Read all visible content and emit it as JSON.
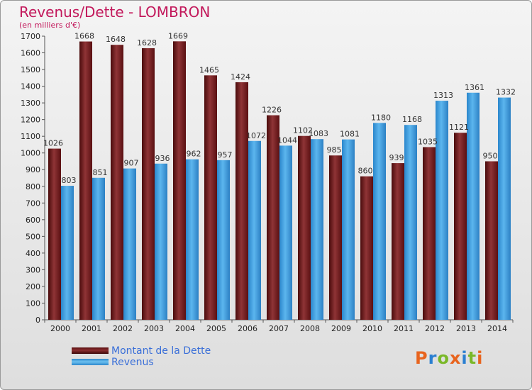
{
  "header": {
    "title": "Revenus/Dette - LOMBRON",
    "subtitle": "(en milliers d'€)"
  },
  "legend": {
    "dette_label": "Montant de la Dette",
    "revenus_label": "Revenus"
  },
  "brand": {
    "letters": [
      "P",
      "r",
      "o",
      "x",
      "i",
      "t",
      "i"
    ],
    "colors": [
      "#e8641e",
      "#2a7fd1",
      "#7ab829",
      "#e8641e",
      "#2a7fd1",
      "#7ab829",
      "#e8641e"
    ]
  },
  "colors": {
    "dette": "#7a1f22",
    "dette_dark": "#4a0b0c",
    "revenus": "#3ea2e6",
    "revenus_dark": "#1f74b8",
    "title": "#c2185b"
  },
  "chart_data": {
    "type": "bar",
    "title": "Revenus/Dette - LOMBRON",
    "ylabel": "(en milliers d'€)",
    "xlabel": "",
    "ylim": [
      0,
      1700
    ],
    "yticks": [
      0,
      100,
      200,
      300,
      400,
      500,
      600,
      700,
      800,
      900,
      1000,
      1100,
      1200,
      1300,
      1400,
      1500,
      1600,
      1700
    ],
    "categories": [
      "2000",
      "2001",
      "2002",
      "2003",
      "2004",
      "2005",
      "2006",
      "2007",
      "2008",
      "2009",
      "2010",
      "2011",
      "2012",
      "2013",
      "2014"
    ],
    "series": [
      {
        "name": "Montant de la Dette",
        "values": [
          1026,
          1668,
          1648,
          1628,
          1669,
          1465,
          1424,
          1226,
          1102,
          985,
          860,
          939,
          1035,
          1121,
          950
        ],
        "labels": [
          "1026",
          "1668",
          "1648",
          "1628",
          "1669",
          "1465",
          "1424",
          "1226",
          "1102",
          "985",
          "860",
          "939",
          "1035",
          "1121",
          "950"
        ]
      },
      {
        "name": "Revenus",
        "values": [
          803,
          851,
          907,
          936,
          962,
          957,
          1072,
          1044,
          1083,
          1081,
          1180,
          1168,
          1313,
          1361,
          1332
        ],
        "labels": [
          "803",
          "851",
          "907",
          "936",
          "962",
          "957",
          "1072",
          "1044",
          "1083",
          "1081",
          "1180",
          "1168",
          "1313",
          "1361",
          "1332"
        ]
      }
    ],
    "grid": false,
    "legend_position": "bottom-left"
  }
}
